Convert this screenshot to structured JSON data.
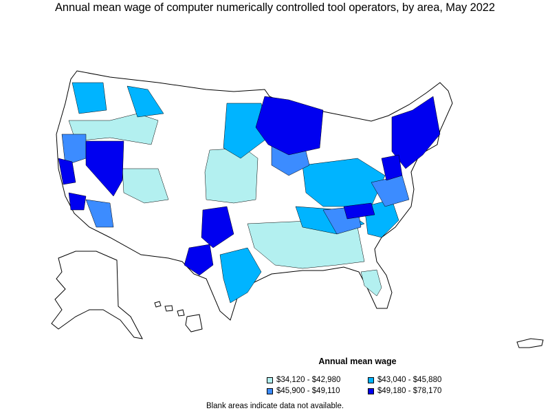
{
  "title": "Annual mean wage of computer numerically controlled tool operators, by area, May 2022",
  "legend": {
    "title": "Annual mean wage",
    "items": [
      {
        "label": "$34,120 - $42,980",
        "color": "#b3f0f0"
      },
      {
        "label": "$43,040 - $45,880",
        "color": "#00b4ff"
      },
      {
        "label": "$45,900 - $49,110",
        "color": "#3c8cff"
      },
      {
        "label": "$49,180 - $78,170",
        "color": "#0000f0"
      }
    ]
  },
  "note": "Blank areas indicate data not available.",
  "colors": {
    "blank": "#ffffff",
    "border": "#000000"
  }
}
